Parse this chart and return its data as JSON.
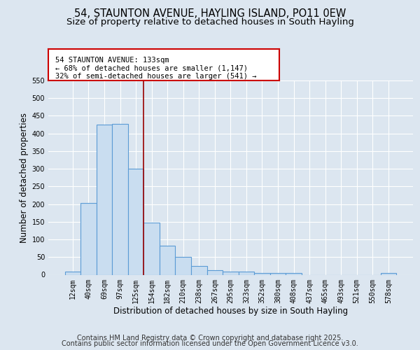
{
  "title_line1": "54, STAUNTON AVENUE, HAYLING ISLAND, PO11 0EW",
  "title_line2": "Size of property relative to detached houses in South Hayling",
  "xlabel": "Distribution of detached houses by size in South Hayling",
  "ylabel": "Number of detached properties",
  "bin_labels": [
    "12sqm",
    "40sqm",
    "69sqm",
    "97sqm",
    "125sqm",
    "154sqm",
    "182sqm",
    "210sqm",
    "238sqm",
    "267sqm",
    "295sqm",
    "323sqm",
    "352sqm",
    "380sqm",
    "408sqm",
    "437sqm",
    "465sqm",
    "493sqm",
    "521sqm",
    "550sqm",
    "578sqm"
  ],
  "bar_heights": [
    8,
    203,
    425,
    428,
    301,
    147,
    82,
    50,
    24,
    12,
    8,
    8,
    5,
    4,
    4,
    0,
    0,
    0,
    0,
    0,
    4
  ],
  "bar_color": "#c9ddf0",
  "bar_edge_color": "#5b9bd5",
  "bar_edge_width": 0.8,
  "vline_x": 4.5,
  "vline_color": "#990000",
  "annotation_text": "54 STAUNTON AVENUE: 133sqm\n← 68% of detached houses are smaller (1,147)\n32% of semi-detached houses are larger (541) →",
  "annotation_box_edgecolor": "#cc0000",
  "annotation_box_facecolor": "#ffffff",
  "ylim": [
    0,
    550
  ],
  "yticks": [
    0,
    50,
    100,
    150,
    200,
    250,
    300,
    350,
    400,
    450,
    500,
    550
  ],
  "background_color": "#dce6f0",
  "plot_background_color": "#dce6f0",
  "grid_color": "#ffffff",
  "footer_line1": "Contains HM Land Registry data © Crown copyright and database right 2025.",
  "footer_line2": "Contains public sector information licensed under the Open Government Licence v3.0.",
  "title_fontsize": 10.5,
  "subtitle_fontsize": 9.5,
  "tick_fontsize": 7,
  "ylabel_fontsize": 8.5,
  "xlabel_fontsize": 8.5,
  "footer_fontsize": 7,
  "annot_fontsize": 7.5
}
